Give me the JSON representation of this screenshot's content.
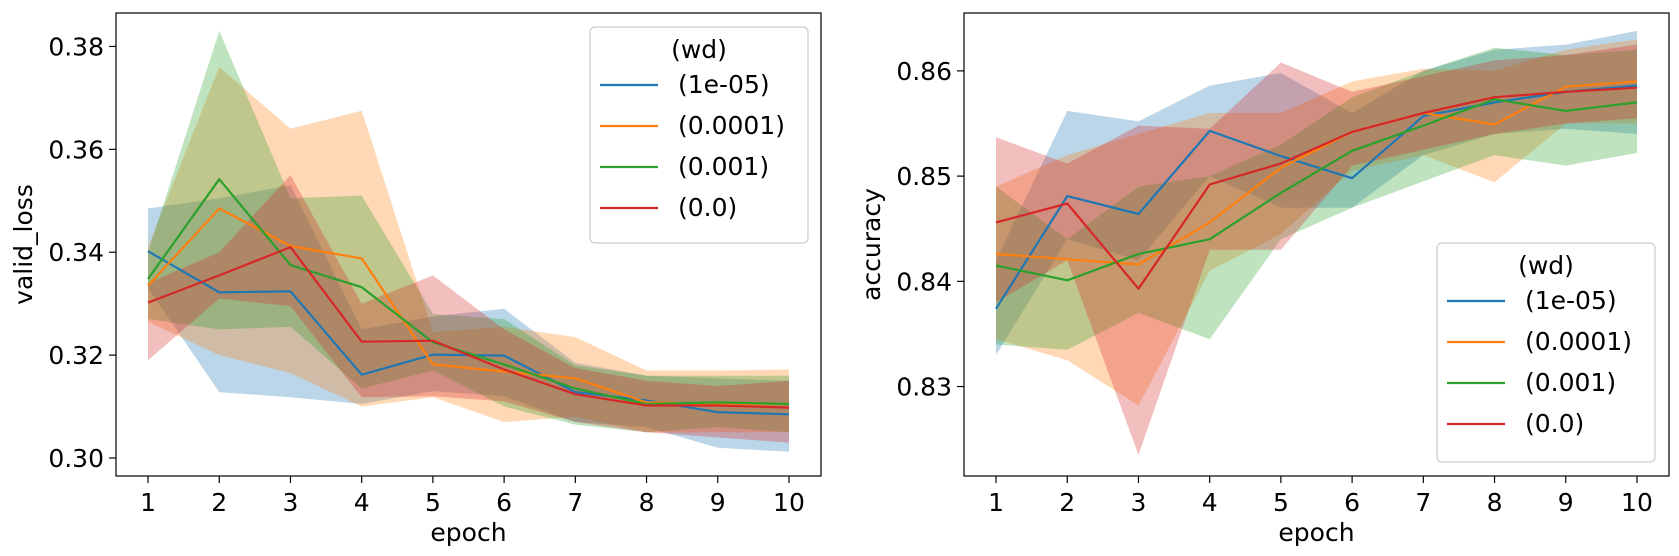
{
  "chart_data": [
    {
      "type": "line",
      "xlabel": "epoch",
      "ylabel": "valid_loss",
      "xlim": [
        0.55,
        10.45
      ],
      "ylim": [
        0.2965,
        0.3865
      ],
      "xticks": [
        1,
        2,
        3,
        4,
        5,
        6,
        7,
        8,
        9,
        10
      ],
      "yticks": [
        0.3,
        0.32,
        0.34,
        0.36,
        0.38
      ],
      "ytick_labels": [
        "0.30",
        "0.32",
        "0.34",
        "0.36",
        "0.38"
      ],
      "legend": {
        "title": "(wd)",
        "position": "top-right"
      },
      "x": [
        1,
        2,
        3,
        4,
        5,
        6,
        7,
        8,
        9,
        10
      ],
      "series": [
        {
          "name": "(1e-05)",
          "color": "#1f77b4",
          "values": [
            0.3402,
            0.3322,
            0.3324,
            0.3162,
            0.3201,
            0.3199,
            0.3128,
            0.3112,
            0.3089,
            0.3085
          ],
          "lower": [
            0.333,
            0.3128,
            0.3118,
            0.3105,
            0.313,
            0.312,
            0.307,
            0.306,
            0.302,
            0.3012
          ],
          "upper": [
            0.3485,
            0.3505,
            0.353,
            0.325,
            0.3275,
            0.329,
            0.3185,
            0.316,
            0.3155,
            0.315
          ]
        },
        {
          "name": "(0.0001)",
          "color": "#ff7f0e",
          "values": [
            0.3335,
            0.3485,
            0.3412,
            0.3388,
            0.3182,
            0.3168,
            0.3155,
            0.3108,
            0.3105,
            0.3105
          ],
          "lower": [
            0.3265,
            0.32,
            0.3165,
            0.31,
            0.3118,
            0.307,
            0.308,
            0.305,
            0.305,
            0.305
          ],
          "upper": [
            0.341,
            0.376,
            0.364,
            0.3675,
            0.3245,
            0.3255,
            0.3235,
            0.317,
            0.317,
            0.3172
          ]
        },
        {
          "name": "(0.001)",
          "color": "#2ca02c",
          "values": [
            0.3348,
            0.3542,
            0.3375,
            0.3332,
            0.3225,
            0.3182,
            0.3135,
            0.3105,
            0.3108,
            0.3105
          ],
          "lower": [
            0.327,
            0.325,
            0.3255,
            0.3135,
            0.317,
            0.31,
            0.3065,
            0.305,
            0.306,
            0.305
          ],
          "upper": [
            0.34,
            0.383,
            0.3505,
            0.351,
            0.328,
            0.327,
            0.318,
            0.316,
            0.316,
            0.316
          ]
        },
        {
          "name": "(0.0)",
          "color": "#d62728",
          "values": [
            0.3302,
            0.3355,
            0.341,
            0.3226,
            0.3228,
            0.3172,
            0.3124,
            0.3102,
            0.3102,
            0.3098
          ],
          "lower": [
            0.319,
            0.331,
            0.3295,
            0.3118,
            0.312,
            0.311,
            0.307,
            0.305,
            0.304,
            0.303
          ],
          "upper": [
            0.334,
            0.34,
            0.355,
            0.33,
            0.3355,
            0.325,
            0.3175,
            0.315,
            0.314,
            0.315
          ]
        }
      ]
    },
    {
      "type": "line",
      "xlabel": "epoch",
      "ylabel": "accuracy",
      "xlim": [
        0.55,
        10.45
      ],
      "ylim": [
        0.8215,
        0.8655
      ],
      "xticks": [
        1,
        2,
        3,
        4,
        5,
        6,
        7,
        8,
        9,
        10
      ],
      "yticks": [
        0.83,
        0.84,
        0.85,
        0.86
      ],
      "ytick_labels": [
        "0.83",
        "0.84",
        "0.85",
        "0.86"
      ],
      "legend": {
        "title": "(wd)",
        "position": "bottom-right"
      },
      "x": [
        1,
        2,
        3,
        4,
        5,
        6,
        7,
        8,
        9,
        10
      ],
      "series": [
        {
          "name": "(1e-05)",
          "color": "#1f77b4",
          "values": [
            0.8374,
            0.8481,
            0.8464,
            0.8543,
            0.8519,
            0.8498,
            0.8557,
            0.857,
            0.858,
            0.8586
          ],
          "lower": [
            0.833,
            0.844,
            0.842,
            0.85,
            0.847,
            0.847,
            0.852,
            0.854,
            0.8545,
            0.854
          ],
          "upper": [
            0.842,
            0.8562,
            0.8552,
            0.8586,
            0.8598,
            0.856,
            0.86,
            0.862,
            0.8625,
            0.8638
          ]
        },
        {
          "name": "(0.0001)",
          "color": "#ff7f0e",
          "values": [
            0.8426,
            0.8421,
            0.8416,
            0.8456,
            0.8508,
            0.8542,
            0.856,
            0.8549,
            0.8585,
            0.859
          ],
          "lower": [
            0.8345,
            0.8325,
            0.8282,
            0.841,
            0.8445,
            0.8505,
            0.852,
            0.8494,
            0.855,
            0.855
          ],
          "upper": [
            0.849,
            0.852,
            0.854,
            0.856,
            0.856,
            0.859,
            0.8602,
            0.86,
            0.862,
            0.863
          ]
        },
        {
          "name": "(0.001)",
          "color": "#2ca02c",
          "values": [
            0.8415,
            0.8401,
            0.8426,
            0.844,
            0.8484,
            0.8524,
            0.8548,
            0.8573,
            0.8562,
            0.857
          ],
          "lower": [
            0.834,
            0.8335,
            0.837,
            0.8345,
            0.844,
            0.847,
            0.8495,
            0.852,
            0.851,
            0.8522
          ],
          "upper": [
            0.849,
            0.844,
            0.849,
            0.85,
            0.853,
            0.8575,
            0.86,
            0.8622,
            0.8615,
            0.862
          ]
        },
        {
          "name": "(0.0)",
          "color": "#d62728",
          "values": [
            0.8456,
            0.8474,
            0.8393,
            0.8492,
            0.8512,
            0.8542,
            0.856,
            0.8575,
            0.858,
            0.8584
          ],
          "lower": [
            0.838,
            0.842,
            0.8235,
            0.843,
            0.843,
            0.851,
            0.8525,
            0.854,
            0.855,
            0.8555
          ],
          "upper": [
            0.8537,
            0.8512,
            0.8548,
            0.8545,
            0.8608,
            0.858,
            0.8595,
            0.861,
            0.8615,
            0.8625
          ]
        }
      ]
    }
  ]
}
